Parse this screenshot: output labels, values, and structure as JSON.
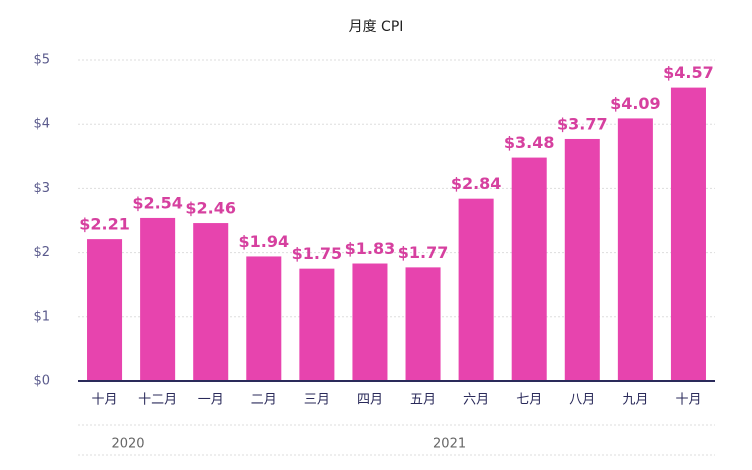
{
  "chart_data": {
    "type": "bar",
    "title": "月度 CPI",
    "groups": [
      {
        "label": "2020",
        "categories": [
          "十月",
          "十二月"
        ],
        "values": [
          2.21,
          2.54
        ],
        "value_labels": [
          "$2.21",
          "$2.54"
        ]
      },
      {
        "label": "2021",
        "categories": [
          "一月",
          "二月",
          "三月",
          "四月",
          "五月",
          "六月",
          "七月",
          "八月",
          "九月",
          "十月"
        ],
        "values": [
          2.46,
          1.94,
          1.75,
          1.83,
          1.77,
          2.84,
          3.48,
          3.77,
          4.09,
          4.57
        ],
        "value_labels": [
          "$2.46",
          "$1.94",
          "$1.75",
          "$1.83",
          "$1.77",
          "$2.84",
          "$3.48",
          "$3.77",
          "$4.09",
          "$4.57"
        ]
      }
    ],
    "color": "#e744ae",
    "ylim": [
      0,
      5
    ],
    "yticks": [
      {
        "value": 0,
        "label": "$0"
      },
      {
        "value": 1,
        "label": "$1"
      },
      {
        "value": 2,
        "label": "$2"
      },
      {
        "value": 3,
        "label": "$3"
      },
      {
        "value": 4,
        "label": "$4"
      },
      {
        "value": 5,
        "label": "$5"
      }
    ],
    "grid": true
  }
}
